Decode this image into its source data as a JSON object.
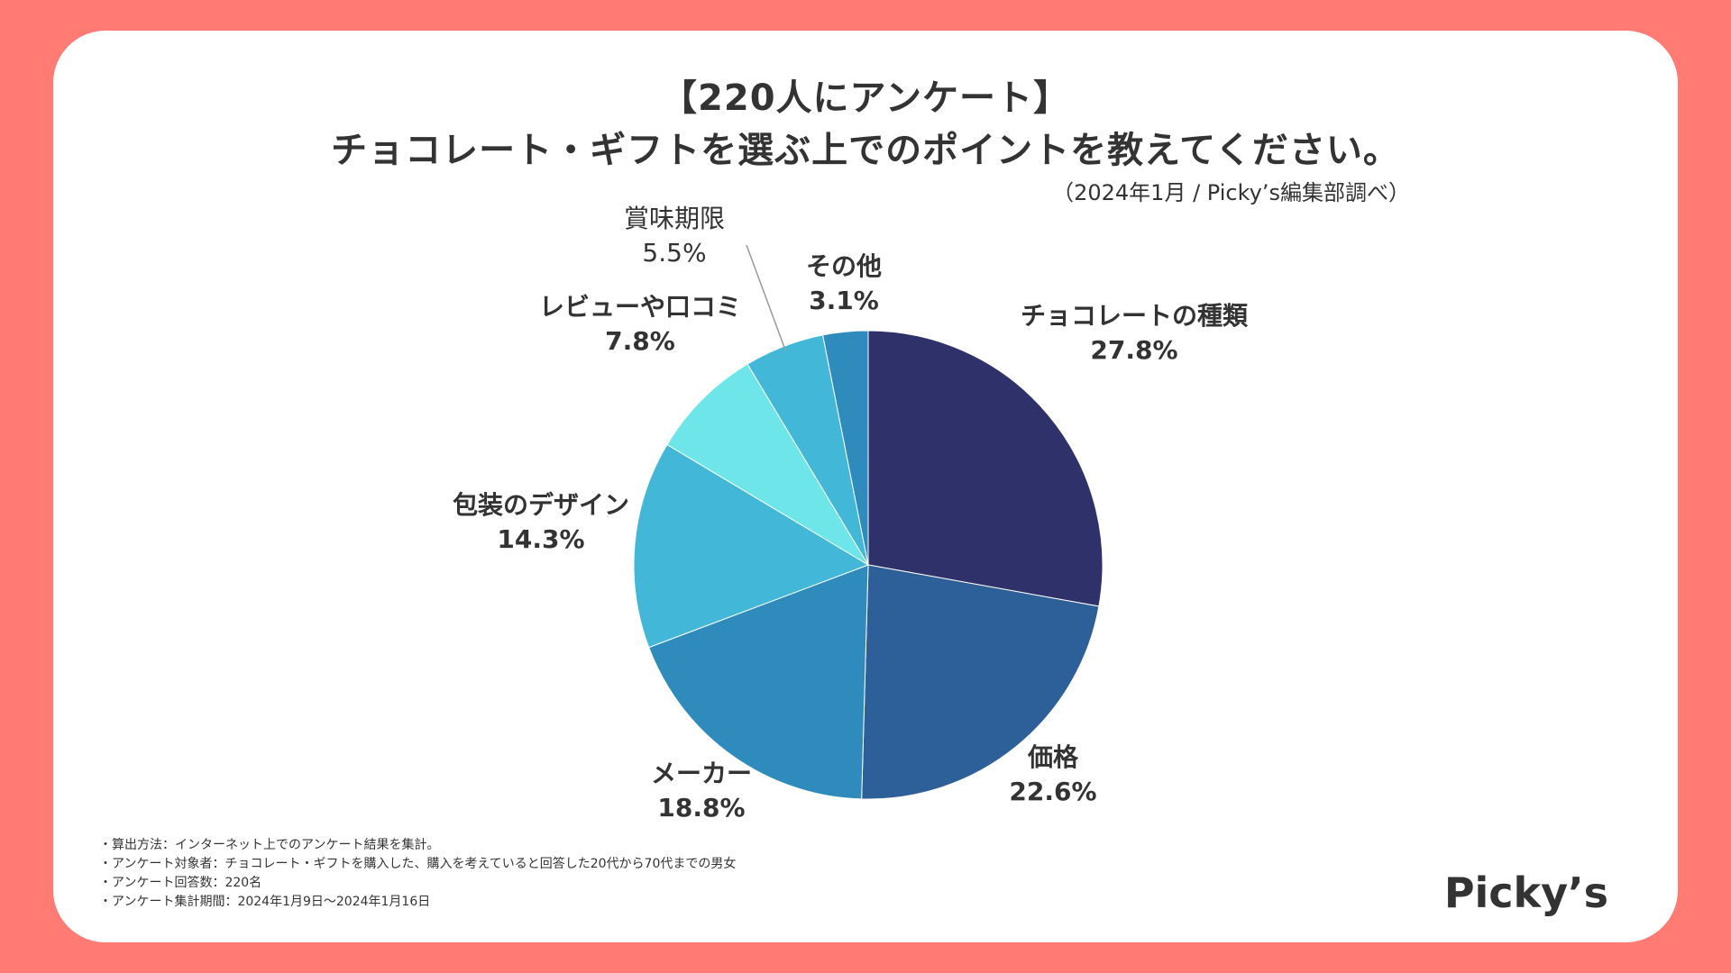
{
  "header": {
    "title_line1": "【220人にアンケート】",
    "title_line2": "チョコレート・ギフトを選ぶ上でのポイントを教えてください。",
    "source": "（2024年1月 / Picky’s編集部調べ）"
  },
  "chart_data": {
    "type": "pie",
    "title": "チョコレート・ギフトを選ぶ上でのポイントを教えてください。",
    "unit": "%",
    "start": "12 o'clock, clockwise",
    "slices": [
      {
        "label": "チョコレートの種類",
        "value": 27.8,
        "value_label": "27.8%",
        "color": "#2F326A"
      },
      {
        "label": "価格",
        "value": 22.6,
        "value_label": "22.6%",
        "color": "#2D5F98"
      },
      {
        "label": "メーカー",
        "value": 18.8,
        "value_label": "18.8%",
        "color": "#2E8BBB"
      },
      {
        "label": "包装のデザイン",
        "value": 14.3,
        "value_label": "14.3%",
        "color": "#42B7D7"
      },
      {
        "label": "レビューや口コミ",
        "value": 7.8,
        "value_label": "7.8%",
        "color": "#6DE5E9"
      },
      {
        "label": "賞味期限",
        "value": 5.5,
        "value_label": "5.5%",
        "color": "#42B7D7"
      },
      {
        "label": "その他",
        "value": 3.1,
        "value_label": "3.1%",
        "color": "#2E8BBB"
      }
    ]
  },
  "notes": [
    "・算出方法：インターネット上でのアンケート結果を集計。",
    "・アンケート対象者：チョコレート・ギフトを購入した、購入を考えていると回答した20代から70代までの男女",
    "・アンケート回答数：220名",
    "・アンケート集計期間：2024年1月9日〜2024年1月16日"
  ],
  "logo": "Picky’s",
  "colors": {
    "background": "#FF7B74",
    "card": "#FFFFFF",
    "text": "#333333"
  }
}
